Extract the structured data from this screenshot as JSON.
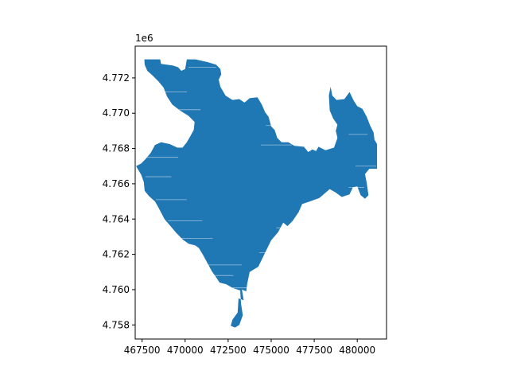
{
  "figure": {
    "axes_offset_label": "1e6"
  },
  "chart_data": {
    "type": "map",
    "xlim": [
      467100,
      481700
    ],
    "ylim": [
      4757200,
      4773800
    ],
    "x_ticks": [
      467500,
      470000,
      472500,
      475000,
      477500,
      480000
    ],
    "x_tick_labels": [
      "467500",
      "470000",
      "472500",
      "475000",
      "477500",
      "480000"
    ],
    "y_ticks": [
      4758000,
      4760000,
      4762000,
      4764000,
      4766000,
      4768000,
      4770000,
      4772000
    ],
    "y_tick_labels": [
      "4.758",
      "4.760",
      "4.762",
      "4.764",
      "4.766",
      "4.768",
      "4.770",
      "4.772"
    ],
    "fill_color": "#1f77b4",
    "polygon": [
      [
        467630,
        4773050
      ],
      [
        468550,
        4773050
      ],
      [
        468600,
        4772800
      ],
      [
        469300,
        4772700
      ],
      [
        469600,
        4772600
      ],
      [
        469780,
        4772400
      ],
      [
        470000,
        4772500
      ],
      [
        470100,
        4773050
      ],
      [
        470600,
        4773050
      ],
      [
        471300,
        4772900
      ],
      [
        471800,
        4772750
      ],
      [
        472050,
        4772500
      ],
      [
        472100,
        4772200
      ],
      [
        471950,
        4771900
      ],
      [
        472050,
        4771500
      ],
      [
        472350,
        4771000
      ],
      [
        472750,
        4770750
      ],
      [
        473150,
        4770800
      ],
      [
        473450,
        4770600
      ],
      [
        473750,
        4770850
      ],
      [
        474200,
        4770900
      ],
      [
        474450,
        4770500
      ],
      [
        474650,
        4770050
      ],
      [
        474850,
        4769800
      ],
      [
        475000,
        4769250
      ],
      [
        475200,
        4769050
      ],
      [
        475350,
        4768600
      ],
      [
        475600,
        4768350
      ],
      [
        476000,
        4768350
      ],
      [
        476350,
        4768150
      ],
      [
        476900,
        4768100
      ],
      [
        477150,
        4767800
      ],
      [
        477400,
        4767950
      ],
      [
        477600,
        4767850
      ],
      [
        477750,
        4768100
      ],
      [
        478150,
        4767900
      ],
      [
        478650,
        4768050
      ],
      [
        478850,
        4768600
      ],
      [
        478750,
        4769000
      ],
      [
        478850,
        4769350
      ],
      [
        478600,
        4769700
      ],
      [
        478400,
        4770150
      ],
      [
        478350,
        4771000
      ],
      [
        478450,
        4771500
      ],
      [
        478550,
        4771000
      ],
      [
        478800,
        4770750
      ],
      [
        479250,
        4770800
      ],
      [
        479550,
        4771200
      ],
      [
        479800,
        4770700
      ],
      [
        480000,
        4770400
      ],
      [
        480300,
        4770250
      ],
      [
        480550,
        4769800
      ],
      [
        480750,
        4769300
      ],
      [
        480950,
        4768900
      ],
      [
        481000,
        4768500
      ],
      [
        481150,
        4768250
      ],
      [
        481150,
        4766850
      ],
      [
        480700,
        4766850
      ],
      [
        480450,
        4766550
      ],
      [
        480550,
        4766050
      ],
      [
        480650,
        4765350
      ],
      [
        480450,
        4765150
      ],
      [
        480200,
        4765350
      ],
      [
        480000,
        4765850
      ],
      [
        479750,
        4765800
      ],
      [
        479550,
        4765400
      ],
      [
        479100,
        4765250
      ],
      [
        478750,
        4765500
      ],
      [
        478400,
        4765700
      ],
      [
        477800,
        4765200
      ],
      [
        477250,
        4765000
      ],
      [
        476800,
        4764850
      ],
      [
        476600,
        4764400
      ],
      [
        476250,
        4763900
      ],
      [
        475950,
        4763600
      ],
      [
        475700,
        4763800
      ],
      [
        475400,
        4763250
      ],
      [
        475000,
        4762800
      ],
      [
        474750,
        4762300
      ],
      [
        474500,
        4761800
      ],
      [
        474250,
        4761300
      ],
      [
        473750,
        4761000
      ],
      [
        473600,
        4760300
      ],
      [
        473550,
        4759900
      ],
      [
        473300,
        4760000
      ],
      [
        473400,
        4759400
      ],
      [
        473100,
        4759500
      ],
      [
        473050,
        4758700
      ],
      [
        472750,
        4758300
      ],
      [
        472650,
        4757950
      ],
      [
        472900,
        4757850
      ],
      [
        473150,
        4758000
      ],
      [
        473350,
        4758550
      ],
      [
        473250,
        4759200
      ],
      [
        473200,
        4759950
      ],
      [
        472750,
        4760100
      ],
      [
        472400,
        4760300
      ],
      [
        472000,
        4760400
      ],
      [
        471800,
        4760700
      ],
      [
        471550,
        4761050
      ],
      [
        471300,
        4761500
      ],
      [
        471050,
        4761950
      ],
      [
        470800,
        4762350
      ],
      [
        470600,
        4762500
      ],
      [
        470200,
        4762600
      ],
      [
        469850,
        4762850
      ],
      [
        469450,
        4763250
      ],
      [
        469150,
        4763600
      ],
      [
        468800,
        4764000
      ],
      [
        468450,
        4764650
      ],
      [
        468250,
        4765000
      ],
      [
        467900,
        4765300
      ],
      [
        467650,
        4765600
      ],
      [
        467600,
        4766100
      ],
      [
        467450,
        4766500
      ],
      [
        467150,
        4767000
      ],
      [
        467450,
        4767150
      ],
      [
        467700,
        4767400
      ],
      [
        468000,
        4767750
      ],
      [
        468250,
        4768200
      ],
      [
        468600,
        4768350
      ],
      [
        469100,
        4768250
      ],
      [
        469550,
        4768050
      ],
      [
        469850,
        4768050
      ],
      [
        470100,
        4768350
      ],
      [
        470300,
        4768700
      ],
      [
        470500,
        4769050
      ],
      [
        470550,
        4769500
      ],
      [
        470200,
        4769850
      ],
      [
        469700,
        4770150
      ],
      [
        469250,
        4770500
      ],
      [
        468950,
        4770950
      ],
      [
        468750,
        4771450
      ],
      [
        468450,
        4771800
      ],
      [
        468100,
        4772150
      ],
      [
        467800,
        4772400
      ],
      [
        467650,
        4772750
      ],
      [
        467630,
        4773050
      ]
    ]
  }
}
